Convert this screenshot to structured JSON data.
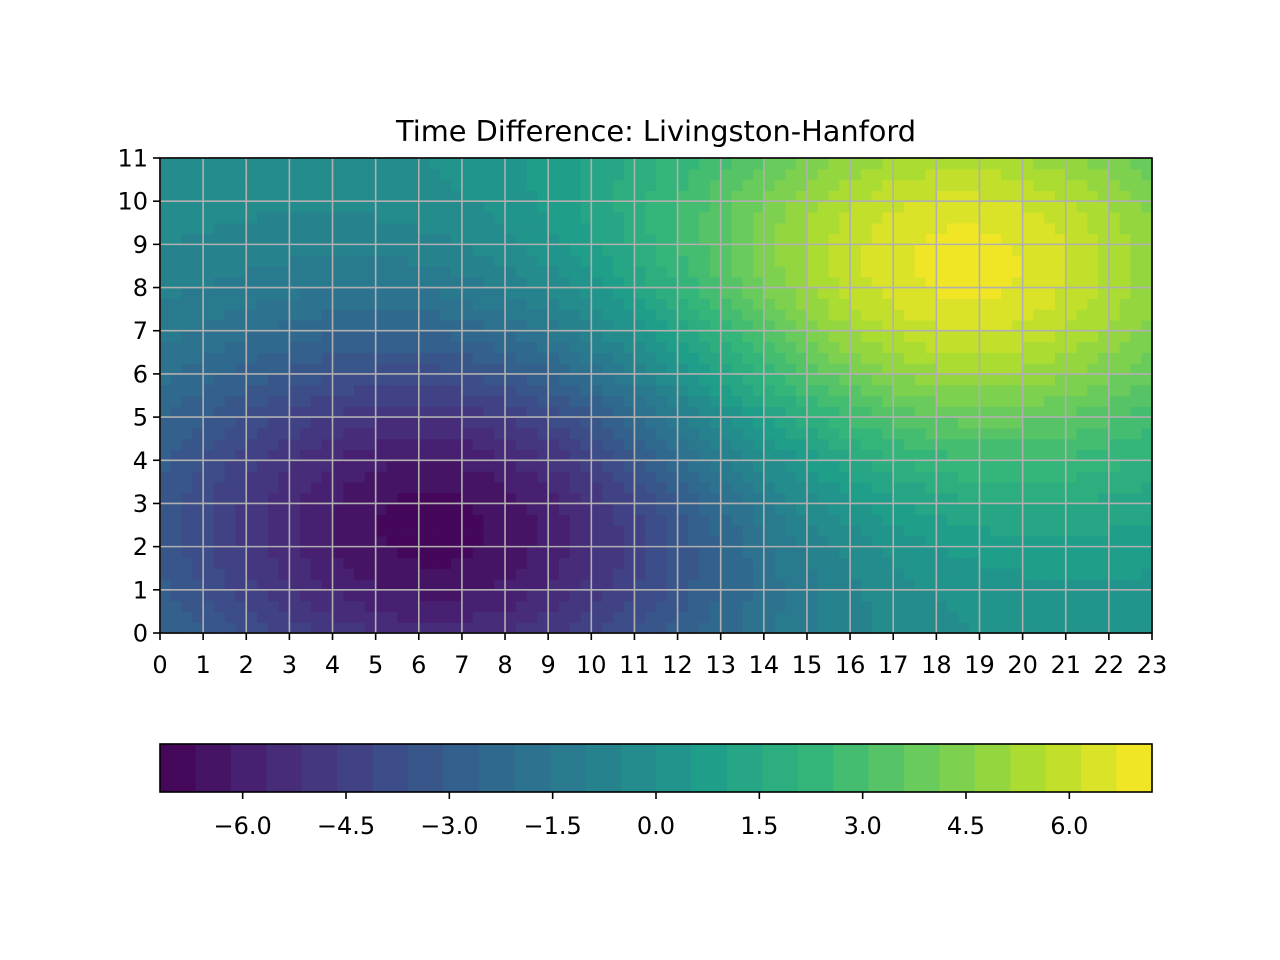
{
  "chart_data": {
    "type": "heatmap",
    "subtype": "filled-contour",
    "title": "Time Difference: Livingston-Hanford",
    "xlabel": "",
    "ylabel": "",
    "x": [
      0,
      1,
      2,
      3,
      4,
      5,
      6,
      7,
      8,
      9,
      10,
      11,
      12,
      13,
      14,
      15,
      16,
      17,
      18,
      19,
      20,
      21,
      22,
      23
    ],
    "y": [
      0,
      1,
      2,
      3,
      4,
      5,
      6,
      7,
      8,
      9,
      10,
      11
    ],
    "xlim": [
      0,
      23
    ],
    "ylim": [
      0,
      11
    ],
    "grid": true,
    "colormap": "viridis",
    "color_range": [
      -7.2,
      7.2
    ],
    "colorbar": {
      "orientation": "horizontal",
      "placement": "bottom",
      "ticks": [
        -6.0,
        -4.5,
        -3.0,
        -1.5,
        0.0,
        1.5,
        3.0,
        4.5,
        6.0
      ],
      "tick_labels": [
        "−6.0",
        "−4.5",
        "−3.0",
        "−1.5",
        "0.0",
        "1.5",
        "3.0",
        "4.5",
        "6.0"
      ],
      "levels": 28
    },
    "extrema": [
      {
        "kind": "min",
        "x": 6.5,
        "y": 2.5,
        "value": -7.0
      },
      {
        "kind": "max",
        "x": 18.5,
        "y": 8.5,
        "value": 7.0
      }
    ],
    "x_tick_labels": [
      "0",
      "1",
      "2",
      "3",
      "4",
      "5",
      "6",
      "7",
      "8",
      "9",
      "10",
      "11",
      "12",
      "13",
      "14",
      "15",
      "16",
      "17",
      "18",
      "19",
      "20",
      "21",
      "22",
      "23"
    ],
    "y_tick_labels": [
      "0",
      "1",
      "2",
      "3",
      "4",
      "5",
      "6",
      "7",
      "8",
      "9",
      "10",
      "11"
    ]
  }
}
